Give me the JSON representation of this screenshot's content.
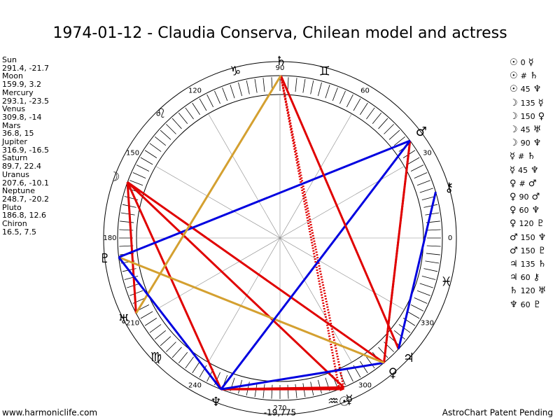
{
  "title": "1974-01-12 - Claudia Conserva, Chilean model and actress",
  "planets": [
    {
      "name": "Sun",
      "glyph": "☉",
      "lon": 291.4,
      "lat": -21.7
    },
    {
      "name": "Moon",
      "glyph": "☽",
      "lon": 159.9,
      "lat": 3.2
    },
    {
      "name": "Mercury",
      "glyph": "☿",
      "lon": 293.1,
      "lat": -23.5
    },
    {
      "name": "Venus",
      "glyph": "♀",
      "lon": 309.8,
      "lat": -14.0
    },
    {
      "name": "Mars",
      "glyph": "♂",
      "lon": 36.8,
      "lat": 15.0
    },
    {
      "name": "Jupiter",
      "glyph": "♃",
      "lon": 316.9,
      "lat": -16.5
    },
    {
      "name": "Saturn",
      "glyph": "♄",
      "lon": 89.7,
      "lat": 22.4
    },
    {
      "name": "Uranus",
      "glyph": "♅",
      "lon": 207.6,
      "lat": -10.1
    },
    {
      "name": "Neptune",
      "glyph": "♆",
      "lon": 248.7,
      "lat": -20.2
    },
    {
      "name": "Pluto",
      "glyph": "♇",
      "lon": 186.8,
      "lat": 12.6
    },
    {
      "name": "Chiron",
      "glyph": "⚷",
      "lon": 16.5,
      "lat": 7.5
    }
  ],
  "aspects": [
    {
      "p1": "☉",
      "aspect": 0,
      "p2": "☿",
      "color": "#e00000",
      "style": "solid"
    },
    {
      "p1": "☉",
      "aspect": "#",
      "p2": "♄",
      "color": "#e00000",
      "style": "dotted"
    },
    {
      "p1": "☉",
      "aspect": 45,
      "p2": "♆",
      "color": "#e00000",
      "style": "solid"
    },
    {
      "p1": "☽",
      "aspect": 135,
      "p2": "☿",
      "color": "#e00000",
      "style": "solid"
    },
    {
      "p1": "☽",
      "aspect": 150,
      "p2": "♀",
      "color": "#e00000",
      "style": "solid"
    },
    {
      "p1": "☽",
      "aspect": 45,
      "p2": "♅",
      "color": "#e00000",
      "style": "solid"
    },
    {
      "p1": "☽",
      "aspect": 90,
      "p2": "♆",
      "color": "#e00000",
      "style": "solid"
    },
    {
      "p1": "☿",
      "aspect": "#",
      "p2": "♄",
      "color": "#e00000",
      "style": "dotted"
    },
    {
      "p1": "☿",
      "aspect": 45,
      "p2": "♆",
      "color": "#e00000",
      "style": "solid"
    },
    {
      "p1": "♀",
      "aspect": "#",
      "p2": "♂",
      "color": "#e00000",
      "style": "dotted"
    },
    {
      "p1": "♀",
      "aspect": 90,
      "p2": "♂",
      "color": "#e00000",
      "style": "solid"
    },
    {
      "p1": "♀",
      "aspect": 60,
      "p2": "♆",
      "color": "#0000e0",
      "style": "solid"
    },
    {
      "p1": "♀",
      "aspect": 120,
      "p2": "♇",
      "color": "#d4a030",
      "style": "solid"
    },
    {
      "p1": "♂",
      "aspect": 150,
      "p2": "♆",
      "color": "#0000e0",
      "style": "solid"
    },
    {
      "p1": "♂",
      "aspect": 150,
      "p2": "♇",
      "color": "#0000e0",
      "style": "solid"
    },
    {
      "p1": "♃",
      "aspect": 135,
      "p2": "♄",
      "color": "#e00000",
      "style": "solid"
    },
    {
      "p1": "♃",
      "aspect": 60,
      "p2": "⚷",
      "color": "#0000e0",
      "style": "solid"
    },
    {
      "p1": "♄",
      "aspect": 120,
      "p2": "♅",
      "color": "#d4a030",
      "style": "solid"
    },
    {
      "p1": "♆",
      "aspect": 60,
      "p2": "♇",
      "color": "#0000e0",
      "style": "solid"
    }
  ],
  "degree_labels": [
    0,
    30,
    60,
    90,
    120,
    150,
    180,
    210,
    240,
    270,
    300,
    330
  ],
  "signs": [
    "♊",
    "♑",
    "♌",
    "♍",
    "♒",
    "♓"
  ],
  "footer": {
    "left": "www.harmoniclife.com",
    "center": "-19,775",
    "right": "AstroChart Patent Pending"
  }
}
